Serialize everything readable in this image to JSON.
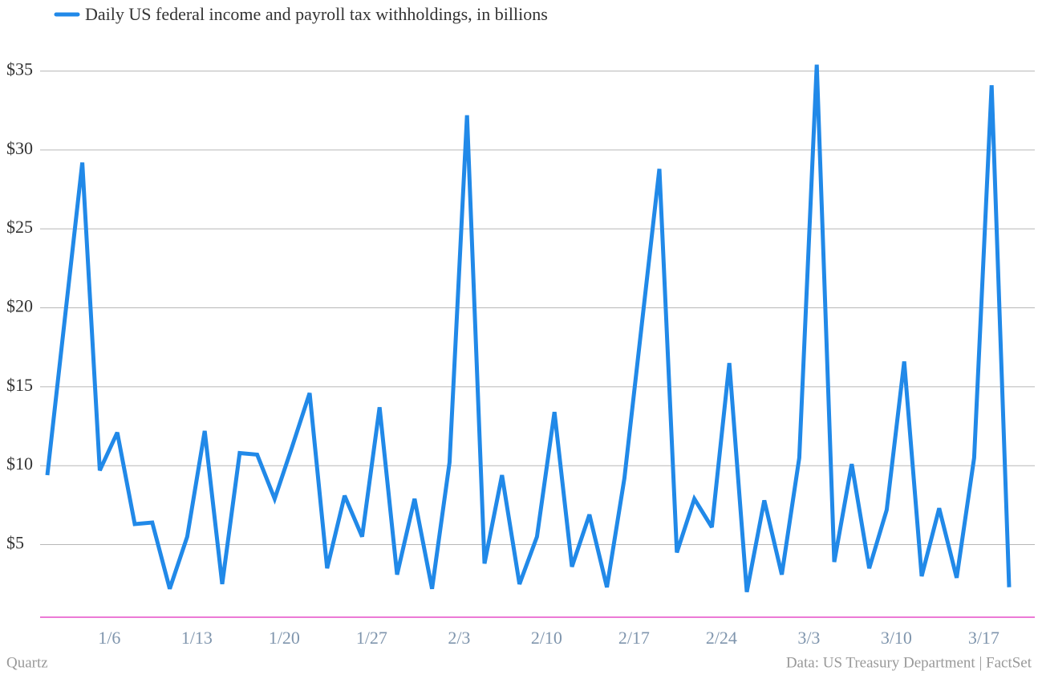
{
  "chart_data": {
    "type": "line",
    "series": [
      {
        "name": "Daily US federal income and payroll tax withholdings, in billions",
        "color": "#2189e8",
        "values": [
          9.4,
          19.3,
          29.2,
          9.7,
          12.1,
          6.3,
          6.4,
          2.2,
          5.5,
          12.2,
          2.5,
          10.8,
          10.7,
          7.9,
          11.2,
          14.6,
          3.5,
          8.1,
          5.5,
          13.7,
          3.1,
          7.9,
          2.2,
          10.2,
          32.2,
          3.8,
          9.4,
          2.5,
          5.5,
          13.4,
          3.6,
          6.9,
          2.3,
          9.2,
          19.0,
          28.8,
          4.5,
          7.9,
          6.1,
          16.5,
          2.0,
          7.8,
          3.1,
          10.5,
          35.4,
          3.9,
          10.1,
          3.5,
          7.2,
          16.6,
          3.0,
          7.3,
          2.9,
          10.5,
          34.1,
          2.3
        ]
      }
    ],
    "categories": [
      null,
      null,
      null,
      null,
      "1/6",
      null,
      null,
      null,
      null,
      "1/13",
      null,
      null,
      null,
      null,
      "1/20",
      null,
      null,
      null,
      null,
      "1/27",
      null,
      null,
      null,
      null,
      "2/3",
      null,
      null,
      null,
      null,
      "2/10",
      null,
      null,
      null,
      null,
      "2/17",
      null,
      null,
      null,
      null,
      "2/24",
      null,
      null,
      null,
      null,
      "3/3",
      null,
      null,
      null,
      null,
      "3/10",
      null,
      null,
      null,
      null,
      "3/17",
      null
    ],
    "ylim": [
      0.4,
      36.5
    ],
    "yticks": [
      {
        "value": 5,
        "label": "$5"
      },
      {
        "value": 10,
        "label": "$10"
      },
      {
        "value": 15,
        "label": "$15"
      },
      {
        "value": 20,
        "label": "$20"
      },
      {
        "value": 25,
        "label": "$25"
      },
      {
        "value": 30,
        "label": "$30"
      },
      {
        "value": 35,
        "label": "$35"
      }
    ],
    "grid": true,
    "source_left": "Quartz",
    "source_right": "Data: US Treasury Department | FactSet"
  }
}
